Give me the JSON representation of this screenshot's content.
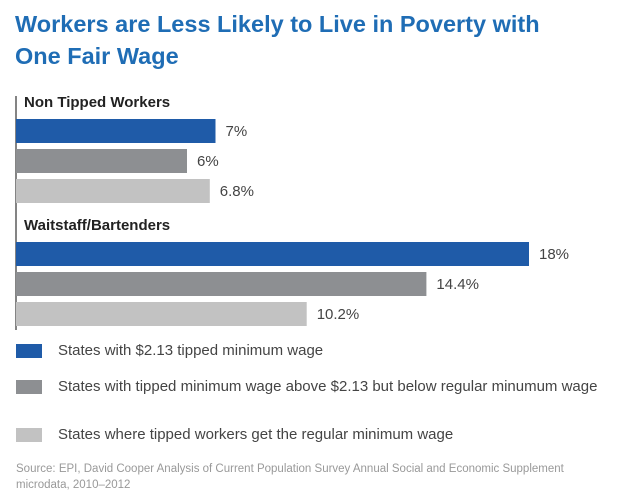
{
  "chart_data": {
    "type": "bar",
    "orientation": "horizontal",
    "title": "Workers are Less Likely to Live in Poverty with One Fair Wage",
    "categories": [
      "Non Tipped Workers",
      "Waitstaff/Bartenders"
    ],
    "series": [
      {
        "name": "States with $2.13 tipped minimum wage",
        "color": "#1f5ba8",
        "values": [
          7,
          18
        ],
        "value_labels": [
          "7%",
          "18%"
        ]
      },
      {
        "name": "States with tipped minimum wage above $2.13 but below regular minumum wage",
        "color": "#8d8f92",
        "values": [
          6,
          14.4
        ],
        "value_labels": [
          "6%",
          "14.4%"
        ]
      },
      {
        "name": "States where tipped workers get the regular minimum wage",
        "color": "#c2c2c2",
        "values": [
          6.8,
          10.2
        ],
        "value_labels": [
          "6.8%",
          "10.2%"
        ]
      }
    ],
    "source": "Source: EPI, David Cooper Analysis of Current Population Survey Annual Social and Economic Supplement microdata, 2010–2012"
  }
}
